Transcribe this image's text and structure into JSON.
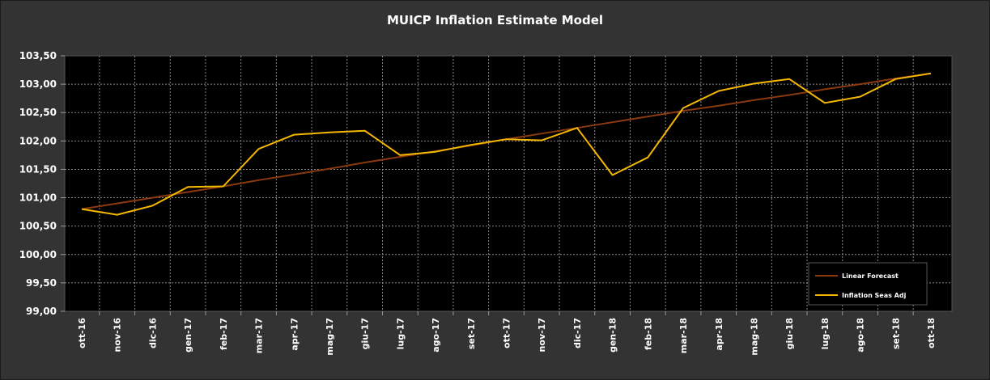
{
  "chart_data": {
    "type": "line",
    "title": "MUICP Inflation Estimate Model",
    "categories": [
      "ott-16",
      "nov-16",
      "dic-16",
      "gen-17",
      "feb-17",
      "mar-17",
      "apr-17",
      "mag-17",
      "giu-17",
      "lug-17",
      "ago-17",
      "set-17",
      "ott-17",
      "nov-17",
      "dic-17",
      "gen-18",
      "feb-18",
      "mar-18",
      "apr-18",
      "mag-18",
      "giu-18",
      "lug-18",
      "ago-18",
      "set-18",
      "ott-18"
    ],
    "y_tick_labels": [
      "99,00",
      "99,50",
      "100,00",
      "100,50",
      "101,00",
      "101,50",
      "102,00",
      "102,50",
      "103,00",
      "103,50"
    ],
    "ylim": [
      99.0,
      103.5
    ],
    "grid": true,
    "legend_position": "bottom-right",
    "series": [
      {
        "name": "Linear Forecast",
        "color": "#8B3A0F",
        "values": [
          100.8,
          100.9,
          101.0,
          101.1,
          101.2,
          101.31,
          101.41,
          101.51,
          101.62,
          101.72,
          101.82,
          101.92,
          102.03,
          102.13,
          102.23,
          102.33,
          102.43,
          102.53,
          102.62,
          102.72,
          102.81,
          102.91,
          103.0,
          103.1,
          103.19
        ]
      },
      {
        "name": "Inflation Seas Adj",
        "color": "#F5B800",
        "values": [
          100.8,
          100.7,
          100.86,
          101.19,
          101.2,
          101.86,
          102.11,
          102.15,
          102.18,
          101.75,
          101.81,
          101.93,
          102.03,
          102.01,
          102.23,
          101.4,
          101.71,
          102.58,
          102.88,
          103.01,
          103.09,
          102.67,
          102.78,
          103.09,
          103.19
        ]
      }
    ]
  }
}
